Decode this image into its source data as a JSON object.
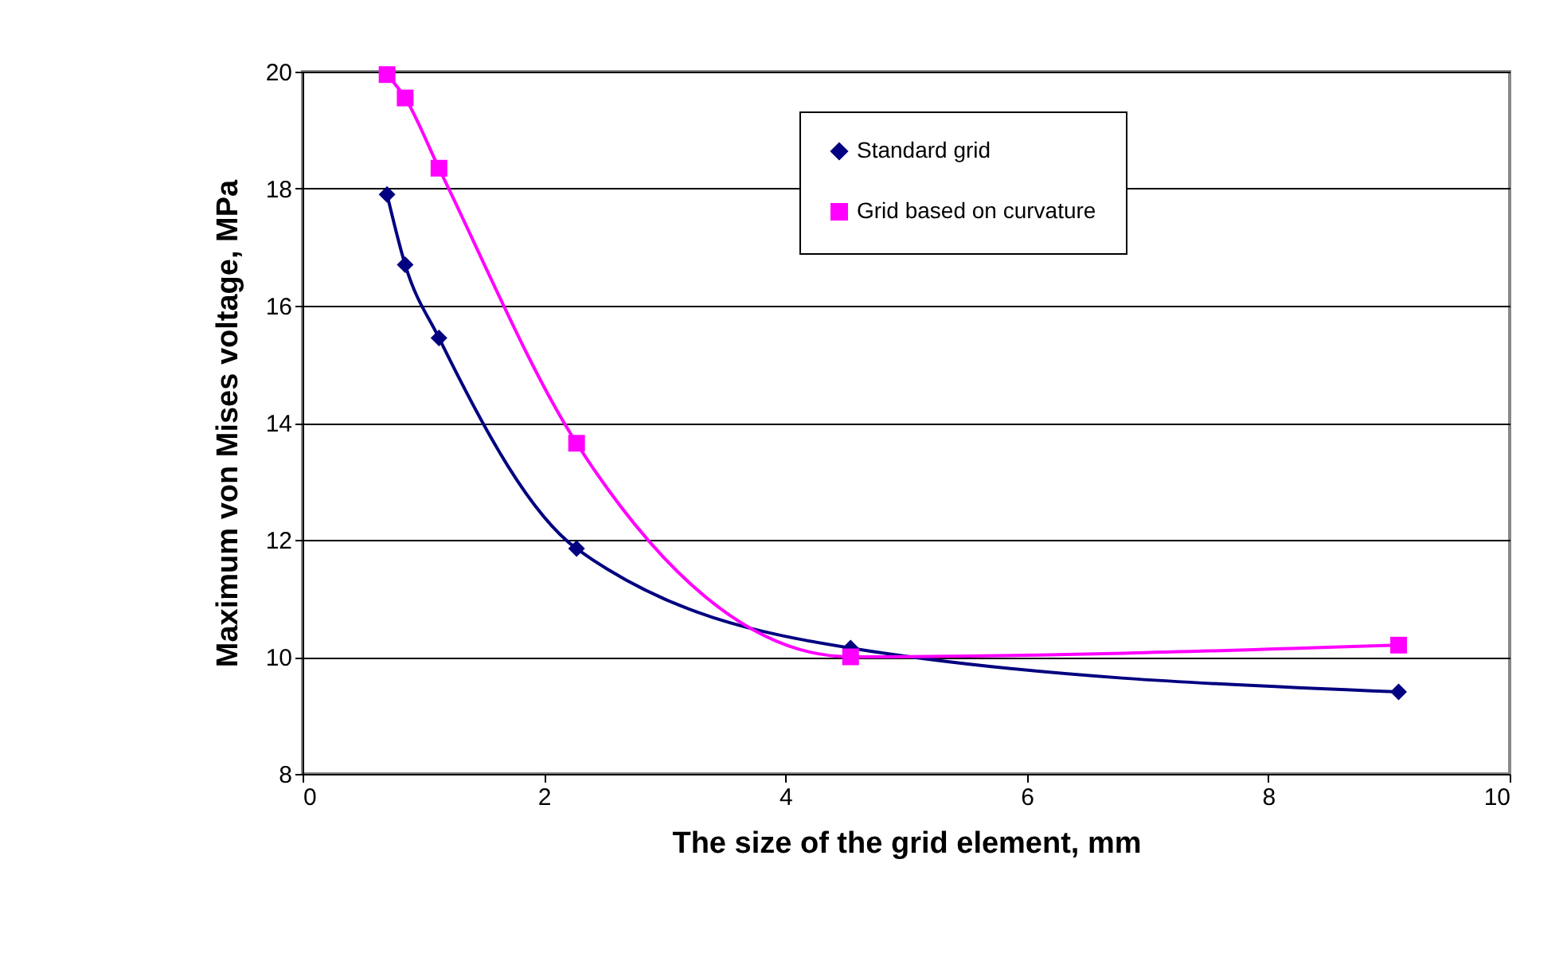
{
  "chart_data": {
    "type": "line",
    "xlabel": "The size of the grid element, mm",
    "ylabel": "Maximum von Mises voltage, MPa",
    "x": [
      0.7,
      0.85,
      1.13,
      2.27,
      4.54,
      9.08
    ],
    "series": [
      {
        "name": "Standard grid",
        "color": "#000080",
        "marker": "diamond",
        "values": [
          17.9,
          16.7,
          15.45,
          11.85,
          10.15,
          9.4
        ]
      },
      {
        "name": "Grid based on curvature",
        "color": "#ff00ff",
        "marker": "square",
        "values": [
          19.95,
          19.55,
          18.35,
          13.65,
          10.0,
          10.2
        ]
      }
    ],
    "xlim": [
      0,
      10
    ],
    "xticks": [
      0,
      2,
      4,
      6,
      8,
      10
    ],
    "ylim": [
      8,
      20
    ],
    "yticks": [
      8,
      10,
      12,
      14,
      16,
      18,
      20
    ],
    "grid": "y",
    "legend": "top right",
    "line_style": "solid"
  }
}
